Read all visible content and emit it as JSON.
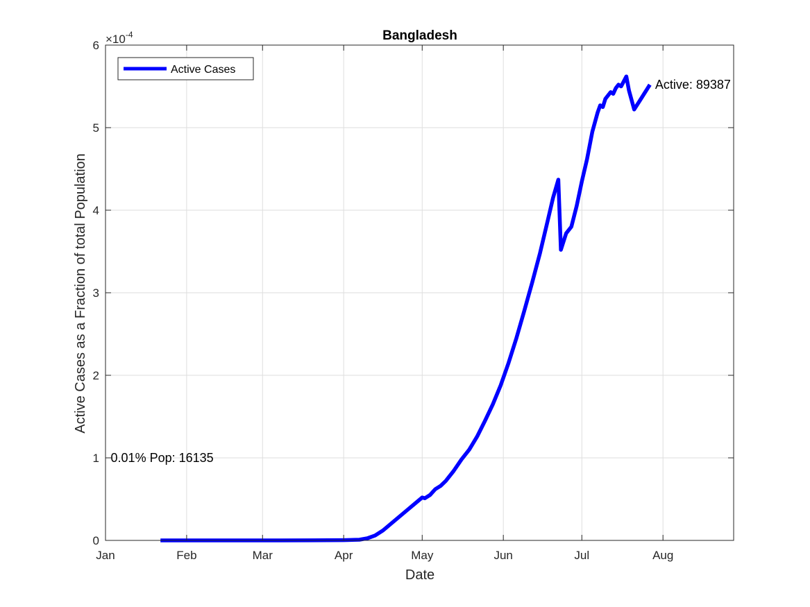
{
  "chart_data": {
    "type": "line",
    "title": "Bangladesh",
    "xlabel": "Date",
    "ylabel": "Active Cases as a Fraction of total Population",
    "y_exponent_base": "×10",
    "y_exponent_power": "-4",
    "xlim": [
      "2020-01-01",
      "2020-08-28"
    ],
    "ylim": [
      0,
      6
    ],
    "x_ticks": [
      {
        "date": "2020-01-01",
        "label": "Jan"
      },
      {
        "date": "2020-02-01",
        "label": "Feb"
      },
      {
        "date": "2020-03-01",
        "label": "Mar"
      },
      {
        "date": "2020-04-01",
        "label": "Apr"
      },
      {
        "date": "2020-05-01",
        "label": "May"
      },
      {
        "date": "2020-06-01",
        "label": "Jun"
      },
      {
        "date": "2020-07-01",
        "label": "Jul"
      },
      {
        "date": "2020-08-01",
        "label": "Aug"
      }
    ],
    "y_ticks": [
      0,
      1,
      2,
      3,
      4,
      5,
      6
    ],
    "y_tick_labels": [
      "0",
      "1",
      "2",
      "3",
      "4",
      "5",
      "6"
    ],
    "grid": true,
    "legend": {
      "position": "top-left",
      "entries": [
        "Active Cases"
      ]
    },
    "series": [
      {
        "name": "Active Cases",
        "color": "#0000ff",
        "points": [
          [
            "2020-01-22",
            0
          ],
          [
            "2020-02-15",
            0
          ],
          [
            "2020-03-08",
            0
          ],
          [
            "2020-03-20",
            0.001
          ],
          [
            "2020-04-01",
            0.003
          ],
          [
            "2020-04-07",
            0.008
          ],
          [
            "2020-04-10",
            0.025
          ],
          [
            "2020-04-13",
            0.06
          ],
          [
            "2020-04-16",
            0.12
          ],
          [
            "2020-04-19",
            0.2
          ],
          [
            "2020-04-22",
            0.28
          ],
          [
            "2020-04-25",
            0.36
          ],
          [
            "2020-04-28",
            0.44
          ],
          [
            "2020-05-01",
            0.52
          ],
          [
            "2020-05-02",
            0.51
          ],
          [
            "2020-05-04",
            0.55
          ],
          [
            "2020-05-06",
            0.62
          ],
          [
            "2020-05-08",
            0.66
          ],
          [
            "2020-05-10",
            0.72
          ],
          [
            "2020-05-13",
            0.84
          ],
          [
            "2020-05-16",
            0.98
          ],
          [
            "2020-05-19",
            1.1
          ],
          [
            "2020-05-22",
            1.26
          ],
          [
            "2020-05-25",
            1.45
          ],
          [
            "2020-05-28",
            1.65
          ],
          [
            "2020-05-31",
            1.88
          ],
          [
            "2020-06-03",
            2.15
          ],
          [
            "2020-06-06",
            2.45
          ],
          [
            "2020-06-09",
            2.78
          ],
          [
            "2020-06-12",
            3.12
          ],
          [
            "2020-06-15",
            3.48
          ],
          [
            "2020-06-18",
            3.88
          ],
          [
            "2020-06-20",
            4.15
          ],
          [
            "2020-06-22",
            4.37
          ],
          [
            "2020-06-23",
            3.52
          ],
          [
            "2020-06-25",
            3.72
          ],
          [
            "2020-06-27",
            3.8
          ],
          [
            "2020-06-29",
            4.05
          ],
          [
            "2020-07-01",
            4.35
          ],
          [
            "2020-07-03",
            4.62
          ],
          [
            "2020-07-05",
            4.95
          ],
          [
            "2020-07-07",
            5.18
          ],
          [
            "2020-07-08",
            5.27
          ],
          [
            "2020-07-09",
            5.25
          ],
          [
            "2020-07-10",
            5.35
          ],
          [
            "2020-07-12",
            5.43
          ],
          [
            "2020-07-13",
            5.41
          ],
          [
            "2020-07-14",
            5.48
          ],
          [
            "2020-07-15",
            5.52
          ],
          [
            "2020-07-16",
            5.5
          ],
          [
            "2020-07-18",
            5.62
          ],
          [
            "2020-07-19",
            5.45
          ],
          [
            "2020-07-21",
            5.22
          ],
          [
            "2020-07-23",
            5.32
          ],
          [
            "2020-07-25",
            5.42
          ],
          [
            "2020-07-27",
            5.52
          ]
        ]
      }
    ],
    "annotations": [
      {
        "text": "Active: 89387",
        "date": "2020-07-29",
        "y": 5.52
      },
      {
        "text": "0.01% Pop: 16135",
        "date": "2020-01-03",
        "y": 1.0
      }
    ]
  }
}
